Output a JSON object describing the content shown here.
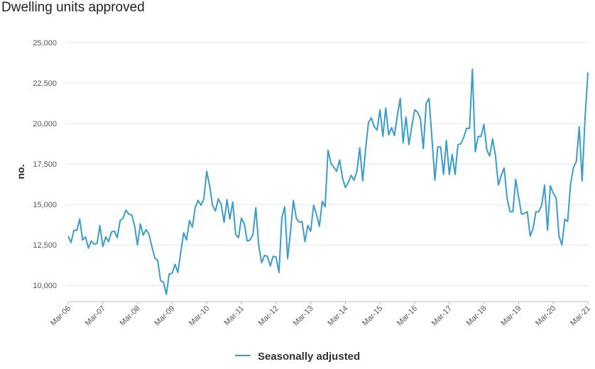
{
  "title": "Dwelling units approved",
  "chart_data": {
    "type": "line",
    "title": "Dwelling units approved",
    "ylabel": "no.",
    "xlabel": "",
    "ylim": [
      9000,
      25000
    ],
    "yticks": [
      10000,
      12500,
      15000,
      17500,
      20000,
      22500,
      25000
    ],
    "ytick_labels": [
      "10,000",
      "12,500",
      "15,000",
      "17,500",
      "20,000",
      "22,500",
      "25,000"
    ],
    "xticks": [
      "Mar-06",
      "Mar-07",
      "Mar-08",
      "Mar-09",
      "Mar-10",
      "Mar-11",
      "Mar-12",
      "Mar-13",
      "Mar-14",
      "Mar-15",
      "Mar-16",
      "Mar-17",
      "Mar-18",
      "Mar-19",
      "Mar-20",
      "Mar-21"
    ],
    "grid": "horizontal",
    "legend": "bottom-center",
    "color": "#3a9dc9",
    "series": [
      {
        "name": "Seasonally adjusted",
        "x_start": "Mar-06",
        "frequency": "monthly",
        "values": [
          13050,
          12650,
          13400,
          13400,
          14100,
          12800,
          13000,
          12300,
          12750,
          12550,
          12600,
          13700,
          12400,
          13000,
          12700,
          13300,
          13350,
          12950,
          14000,
          14150,
          14650,
          14400,
          14350,
          13700,
          12500,
          13800,
          13100,
          13450,
          13150,
          12400,
          11700,
          11550,
          10300,
          10200,
          9450,
          10700,
          10750,
          11300,
          10800,
          12050,
          13250,
          12800,
          14000,
          13600,
          14800,
          15250,
          14950,
          15350,
          17050,
          16150,
          14950,
          14600,
          15350,
          15000,
          13900,
          15300,
          14100,
          15150,
          13150,
          12950,
          14150,
          13800,
          12750,
          12800,
          13150,
          14800,
          12450,
          11400,
          11850,
          11800,
          11200,
          11800,
          11750,
          10800,
          14150,
          14850,
          11650,
          13300,
          15250,
          14150,
          13900,
          13950,
          12700,
          13700,
          13350,
          14950,
          14400,
          13650,
          15200,
          14850,
          18350,
          17550,
          17300,
          17050,
          17750,
          16650,
          16050,
          16350,
          16800,
          16500,
          17050,
          18500,
          16450,
          18400,
          20050,
          20350,
          19800,
          19600,
          20850,
          19200,
          20950,
          19300,
          19750,
          19250,
          20500,
          21550,
          18800,
          20400,
          18700,
          19800,
          20850,
          20700,
          20300,
          18450,
          21250,
          21550,
          19050,
          16500,
          18550,
          18550,
          16850,
          18950,
          16850,
          18100,
          16850,
          18700,
          18750,
          19150,
          19700,
          19700,
          23350,
          18250,
          19200,
          19200,
          19950,
          18350,
          18000,
          19050,
          18000,
          16200,
          16800,
          17250,
          15400,
          14550,
          14550,
          16550,
          15450,
          14400,
          14450,
          14550,
          13050,
          13500,
          14550,
          14550,
          14950,
          16200,
          13400,
          16150,
          15700,
          15400,
          13050,
          12500,
          14100,
          13950,
          16250,
          17300,
          17650,
          19800,
          16450,
          20300,
          23150
        ]
      }
    ]
  },
  "legend": {
    "label": "Seasonally adjusted"
  }
}
